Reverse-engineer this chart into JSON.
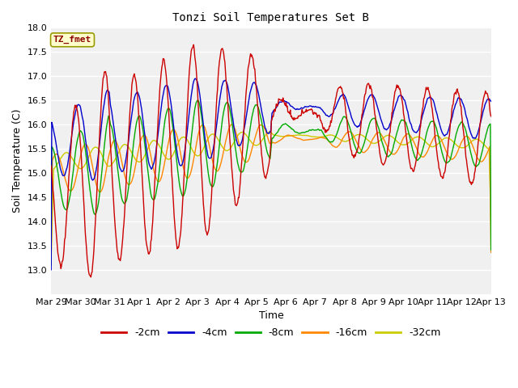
{
  "title": "Tonzi Soil Temperatures Set B",
  "xlabel": "Time",
  "ylabel": "Soil Temperature (C)",
  "legend_label": "TZ_fmet",
  "series_labels": [
    "-2cm",
    "-4cm",
    "-8cm",
    "-16cm",
    "-32cm"
  ],
  "series_colors": [
    "#cc0000",
    "#0000cc",
    "#00aa00",
    "#ff8800",
    "#cccc00"
  ],
  "ylim": [
    12.5,
    18.0
  ],
  "yticks": [
    13.0,
    13.5,
    14.0,
    14.5,
    15.0,
    15.5,
    16.0,
    16.5,
    17.0,
    17.5,
    18.0
  ],
  "bg_color": "#f0f0f0",
  "linewidth": 1.0,
  "n_days": 15,
  "samples_per_day": 48,
  "tick_labels": [
    "Mar 29",
    "Mar 30",
    "Mar 31",
    "Apr 1",
    "Apr 2",
    "Apr 3",
    "Apr 4",
    "Apr 5",
    "Apr 6",
    "Apr 7",
    "Apr 8",
    "Apr 9",
    "Apr 10",
    "Apr 11",
    "Apr 12",
    "Apr 13"
  ]
}
